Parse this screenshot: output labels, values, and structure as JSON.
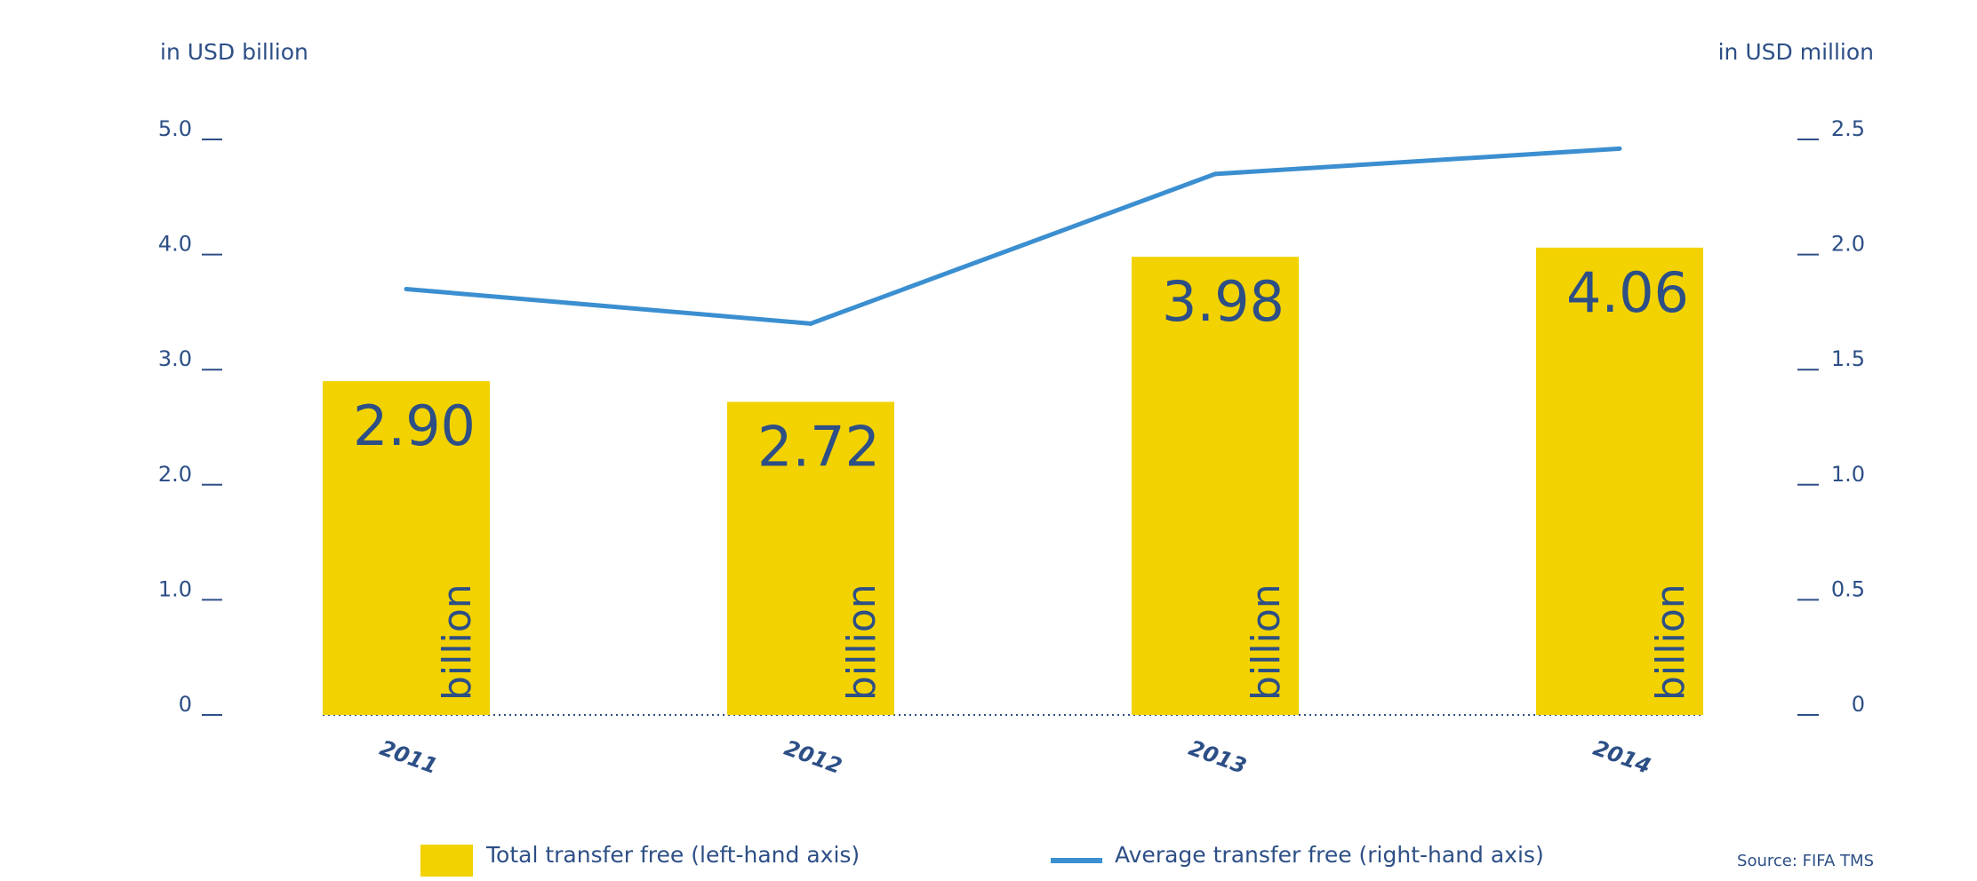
{
  "chart_data": {
    "type": "bar",
    "categories": [
      "2011",
      "2012",
      "2013",
      "2014"
    ],
    "series": [
      {
        "name": "Total transfer free (left-hand axis)",
        "type": "bar",
        "axis": "left",
        "values": [
          2.9,
          2.72,
          3.98,
          4.06
        ],
        "data_labels": [
          "2.90",
          "2.72",
          "3.98",
          "4.06"
        ],
        "unit_label": "billion",
        "color": "#f2d200"
      },
      {
        "name": "Average transfer free (right-hand axis)",
        "type": "line",
        "axis": "right",
        "values": [
          1.85,
          1.7,
          2.35,
          2.46
        ],
        "color": "#3b8fd0"
      }
    ],
    "y_left": {
      "label": "in USD billion",
      "range": [
        0,
        5
      ],
      "ticks": [
        0,
        1,
        2,
        3,
        4,
        5
      ],
      "tick_labels": [
        "0",
        "1.0",
        "2.0",
        "3.0",
        "4.0",
        "5.0"
      ]
    },
    "y_right": {
      "label": "in USD million",
      "range": [
        0,
        2.5
      ],
      "ticks": [
        0,
        0.5,
        1,
        1.5,
        2,
        2.5
      ],
      "tick_labels": [
        "0",
        "0.5",
        "1.0",
        "1.5",
        "2.0",
        "2.5"
      ]
    },
    "grid": false,
    "legend_position": "bottom",
    "source": "Source: FIFA TMS",
    "colors": {
      "text": "#2d4f86",
      "bar": "#f2d200",
      "line": "#3b8fd0"
    }
  }
}
